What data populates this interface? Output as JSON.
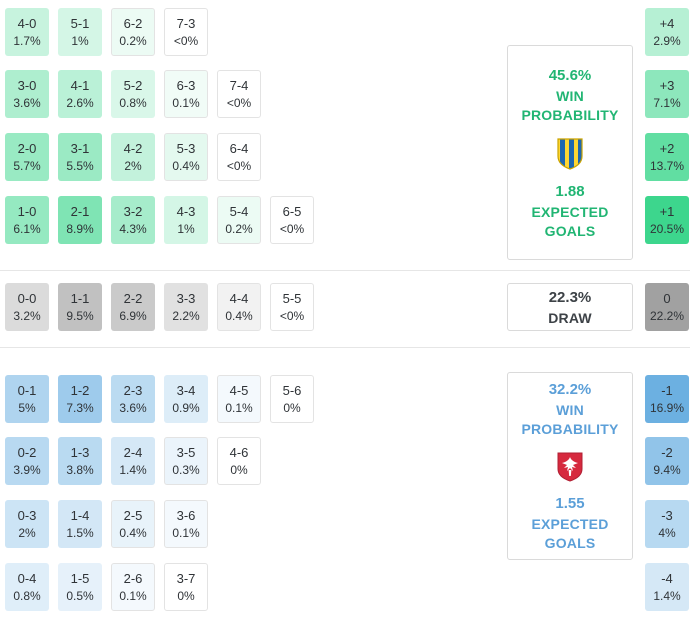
{
  "chart_data": {
    "type": "heatmap",
    "description_visible": false,
    "sections": {
      "home": {
        "accent": "#3bd68c",
        "scale_max": 21,
        "rows": [
          [
            {
              "score": "4-0",
              "pct": "1.7%",
              "v": 1.7
            },
            {
              "score": "5-1",
              "pct": "1%",
              "v": 1.0
            },
            {
              "score": "6-2",
              "pct": "0.2%",
              "v": 0.2
            },
            {
              "score": "7-3",
              "pct": "<0%",
              "v": 0
            }
          ],
          [
            {
              "score": "3-0",
              "pct": "3.6%",
              "v": 3.6
            },
            {
              "score": "4-1",
              "pct": "2.6%",
              "v": 2.6
            },
            {
              "score": "5-2",
              "pct": "0.8%",
              "v": 0.8
            },
            {
              "score": "6-3",
              "pct": "0.1%",
              "v": 0.1
            },
            {
              "score": "7-4",
              "pct": "<0%",
              "v": 0
            }
          ],
          [
            {
              "score": "2-0",
              "pct": "5.7%",
              "v": 5.7
            },
            {
              "score": "3-1",
              "pct": "5.5%",
              "v": 5.5
            },
            {
              "score": "4-2",
              "pct": "2%",
              "v": 2.0
            },
            {
              "score": "5-3",
              "pct": "0.4%",
              "v": 0.4
            },
            {
              "score": "6-4",
              "pct": "<0%",
              "v": 0
            }
          ],
          [
            {
              "score": "1-0",
              "pct": "6.1%",
              "v": 6.1
            },
            {
              "score": "2-1",
              "pct": "8.9%",
              "v": 8.9
            },
            {
              "score": "3-2",
              "pct": "4.3%",
              "v": 4.3
            },
            {
              "score": "4-3",
              "pct": "1%",
              "v": 1.0
            },
            {
              "score": "5-4",
              "pct": "0.2%",
              "v": 0.2
            },
            {
              "score": "6-5",
              "pct": "<0%",
              "v": 0
            }
          ]
        ],
        "diff": [
          {
            "label": "+4",
            "pct": "2.9%",
            "v": 2.9
          },
          {
            "label": "+3",
            "pct": "7.1%",
            "v": 7.1
          },
          {
            "label": "+2",
            "pct": "13.7%",
            "v": 13.7
          },
          {
            "label": "+1",
            "pct": "20.5%",
            "v": 20.5
          }
        ]
      },
      "draw": {
        "accent": "#a0a0a0",
        "scale_max": 22.5,
        "rows": [
          [
            {
              "score": "0-0",
              "pct": "3.2%",
              "v": 3.2
            },
            {
              "score": "1-1",
              "pct": "9.5%",
              "v": 9.5
            },
            {
              "score": "2-2",
              "pct": "6.9%",
              "v": 6.9
            },
            {
              "score": "3-3",
              "pct": "2.2%",
              "v": 2.2
            },
            {
              "score": "4-4",
              "pct": "0.4%",
              "v": 0.4
            },
            {
              "score": "5-5",
              "pct": "<0%",
              "v": 0
            }
          ]
        ],
        "diff": [
          {
            "label": "0",
            "pct": "22.2%",
            "v": 22.2
          }
        ]
      },
      "away": {
        "accent": "#5ba7de",
        "scale_max": 21,
        "rows": [
          [
            {
              "score": "0-1",
              "pct": "5%",
              "v": 5.0
            },
            {
              "score": "1-2",
              "pct": "7.3%",
              "v": 7.3
            },
            {
              "score": "2-3",
              "pct": "3.6%",
              "v": 3.6
            },
            {
              "score": "3-4",
              "pct": "0.9%",
              "v": 0.9
            },
            {
              "score": "4-5",
              "pct": "0.1%",
              "v": 0.1
            },
            {
              "score": "5-6",
              "pct": "0%",
              "v": 0
            }
          ],
          [
            {
              "score": "0-2",
              "pct": "3.9%",
              "v": 3.9
            },
            {
              "score": "1-3",
              "pct": "3.8%",
              "v": 3.8
            },
            {
              "score": "2-4",
              "pct": "1.4%",
              "v": 1.4
            },
            {
              "score": "3-5",
              "pct": "0.3%",
              "v": 0.3
            },
            {
              "score": "4-6",
              "pct": "0%",
              "v": 0
            }
          ],
          [
            {
              "score": "0-3",
              "pct": "2%",
              "v": 2.0
            },
            {
              "score": "1-4",
              "pct": "1.5%",
              "v": 1.5
            },
            {
              "score": "2-5",
              "pct": "0.4%",
              "v": 0.4
            },
            {
              "score": "3-6",
              "pct": "0.1%",
              "v": 0.1
            }
          ],
          [
            {
              "score": "0-4",
              "pct": "0.8%",
              "v": 0.8
            },
            {
              "score": "1-5",
              "pct": "0.5%",
              "v": 0.5
            },
            {
              "score": "2-6",
              "pct": "0.1%",
              "v": 0.1
            },
            {
              "score": "3-7",
              "pct": "0%",
              "v": 0
            }
          ]
        ],
        "diff": [
          {
            "label": "-1",
            "pct": "16.9%",
            "v": 16.9
          },
          {
            "label": "-2",
            "pct": "9.4%",
            "v": 9.4
          },
          {
            "label": "-3",
            "pct": "4%",
            "v": 4.0
          },
          {
            "label": "-4",
            "pct": "1.4%",
            "v": 1.4
          }
        ]
      }
    }
  },
  "home_panel": {
    "win_pct": "45.6%",
    "line1": "WIN",
    "line2": "PROBABILITY",
    "xg": "1.88",
    "xg1": "EXPECTED",
    "xg2": "GOALS"
  },
  "draw_panel": {
    "pct": "22.3%",
    "label": "DRAW"
  },
  "away_panel": {
    "win_pct": "32.2%",
    "line1": "WIN",
    "line2": "PROBABILITY",
    "xg": "1.55",
    "xg1": "EXPECTED",
    "xg2": "GOALS"
  },
  "colors": {
    "home_text": "#21b573",
    "draw_text": "#3d4247",
    "away_text": "#5b9fd8",
    "home_accent": "#3bd68c",
    "draw_accent": "#a0a0a0",
    "away_accent": "#5ba7de"
  },
  "icons": {
    "home_crest": "sweden-crest",
    "away_crest": "poland-crest"
  }
}
